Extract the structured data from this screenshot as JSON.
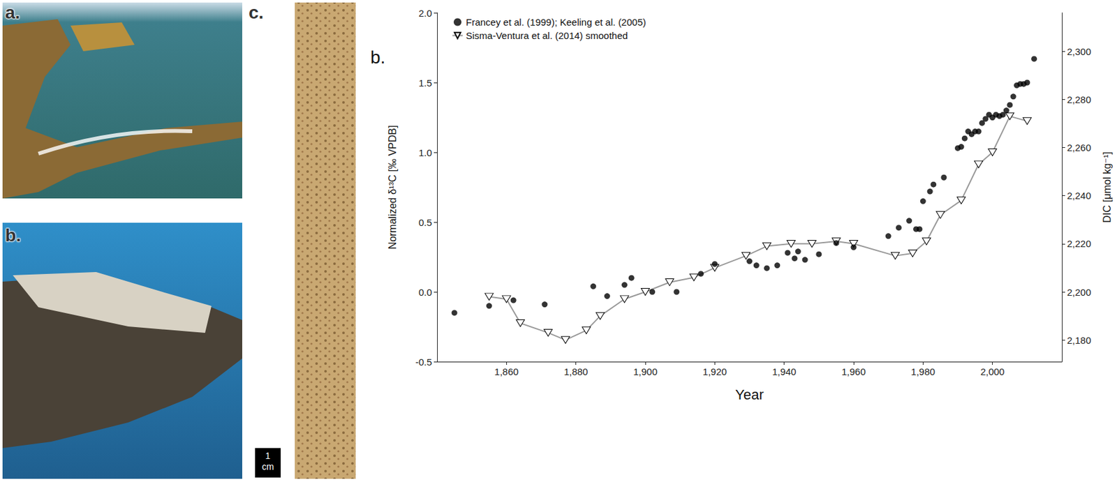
{
  "photo_panels": [
    {
      "label": "a."
    },
    {
      "label": "b."
    },
    {
      "label": "c.",
      "scale_bar": "1 cm"
    }
  ],
  "chart_data": {
    "type": "scatter",
    "panel_label": "b.",
    "x_label": "Year",
    "y_label": "Normalized δ¹³C [‰ VPDB]",
    "y2_label": "DIC [μmol kg⁻¹]",
    "xlim": [
      1840,
      2020
    ],
    "xticks": [
      {
        "value": 1860,
        "label": "1,860"
      },
      {
        "value": 1880,
        "label": "1,880"
      },
      {
        "value": 1900,
        "label": "1,900"
      },
      {
        "value": 1920,
        "label": "1,920"
      },
      {
        "value": 1940,
        "label": "1,940"
      },
      {
        "value": 1960,
        "label": "1,960"
      },
      {
        "value": 1980,
        "label": "1,980"
      },
      {
        "value": 2000,
        "label": "2,000"
      }
    ],
    "ylim": [
      -0.5,
      2.0
    ],
    "yticks": [
      -0.5,
      {
        "value": 0,
        "label": "0.0"
      },
      0.5,
      {
        "value": 1,
        "label": "1.0"
      },
      1.5,
      {
        "value": 2,
        "label": "2.0"
      }
    ],
    "y2lim": [
      2171,
      2316
    ],
    "y2ticks": [
      {
        "value": 2180,
        "label": "2,180"
      },
      {
        "value": 2200,
        "label": "2,200"
      },
      {
        "value": 2220,
        "label": "2,220"
      },
      {
        "value": 2240,
        "label": "2,240"
      },
      {
        "value": 2260,
        "label": "2,260"
      },
      {
        "value": 2280,
        "label": "2,280"
      },
      {
        "value": 2300,
        "label": "2,300"
      }
    ],
    "grid": false,
    "legend": "upper left",
    "series": [
      {
        "name": "Francey et al. (1999); Keeling et al. (2005)",
        "type": "scatter",
        "marker": "circle",
        "color": "#000000",
        "x": [
          1845,
          1855,
          1862,
          1871,
          1885,
          1889,
          1894,
          1896,
          1902,
          1909,
          1916,
          1920,
          1930,
          1932,
          1935,
          1938,
          1941,
          1943,
          1944,
          1946,
          1950,
          1955,
          1960,
          1970,
          1973,
          1976,
          1978,
          1979,
          1980,
          1982,
          1983,
          1986,
          1990,
          1991,
          1992,
          1993,
          1994,
          1995,
          1996,
          1997,
          1998,
          1999,
          2000,
          2001,
          2002,
          2003,
          2004,
          2005,
          2006,
          2007,
          2008,
          2009,
          2010,
          2012
        ],
        "values": [
          -0.15,
          -0.1,
          -0.06,
          -0.09,
          0.04,
          -0.03,
          0.05,
          0.1,
          0.0,
          0.0,
          0.13,
          0.2,
          0.22,
          0.19,
          0.17,
          0.19,
          0.28,
          0.24,
          0.29,
          0.23,
          0.27,
          0.35,
          0.32,
          0.4,
          0.46,
          0.51,
          0.45,
          0.45,
          0.65,
          0.72,
          0.77,
          0.82,
          1.03,
          1.04,
          1.1,
          1.15,
          1.13,
          1.15,
          1.15,
          1.21,
          1.24,
          1.27,
          1.25,
          1.27,
          1.26,
          1.27,
          1.3,
          1.34,
          1.4,
          1.48,
          1.49,
          1.49,
          1.5,
          1.67
        ]
      },
      {
        "name": "Sisma-Ventura et al. (2014) smoothed",
        "type": "line",
        "marker": "triangle_down",
        "color": "#999999",
        "axis": "y2",
        "x": [
          1855,
          1860,
          1864,
          1872,
          1877,
          1883,
          1887,
          1894,
          1900,
          1907,
          1914,
          1920,
          1929,
          1935,
          1942,
          1948,
          1955,
          1960,
          1972,
          1977,
          1981,
          1985,
          1991,
          1996,
          2000,
          2005,
          2010
        ],
        "values": [
          2198,
          2197,
          2187,
          2183,
          2180,
          2184,
          2190,
          2197,
          2200,
          2204,
          2206,
          2210,
          2215,
          2219,
          2220,
          2220,
          2221,
          2220,
          2215,
          2216,
          2221,
          2232,
          2238,
          2253,
          2258,
          2273,
          2271
        ]
      }
    ]
  }
}
